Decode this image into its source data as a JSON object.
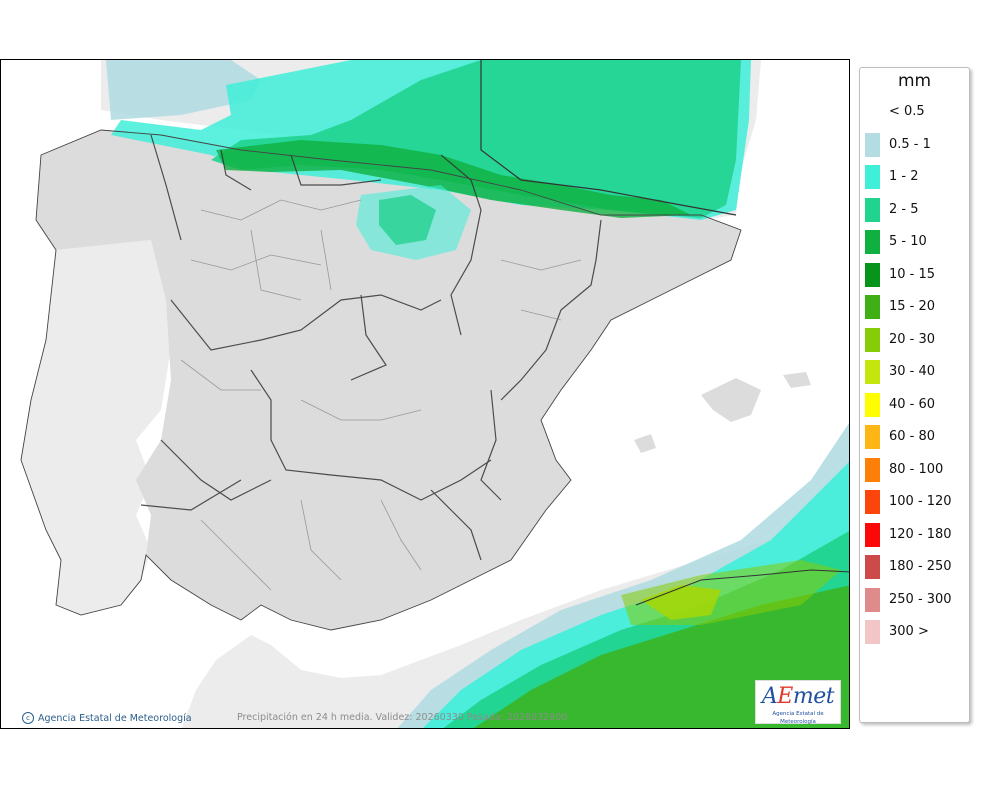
{
  "legend": {
    "unit": "mm",
    "items": [
      {
        "label": "< 0.5",
        "color": ""
      },
      {
        "label": "0.5 - 1",
        "color": "#b3dde2"
      },
      {
        "label": "1 - 2",
        "color": "#3fefd8"
      },
      {
        "label": "2 - 5",
        "color": "#20d38f"
      },
      {
        "label": "5 - 10",
        "color": "#10b040"
      },
      {
        "label": "10 - 15",
        "color": "#07941b"
      },
      {
        "label": "15 - 20",
        "color": "#3eb016"
      },
      {
        "label": "20 - 30",
        "color": "#86cc08"
      },
      {
        "label": "30 - 40",
        "color": "#c4e60e"
      },
      {
        "label": "40 - 60",
        "color": "#fefe00"
      },
      {
        "label": "60 - 80",
        "color": "#fdb614"
      },
      {
        "label": "80 - 100",
        "color": "#fd7f07"
      },
      {
        "label": "100 - 120",
        "color": "#fc450b"
      },
      {
        "label": "120 - 180",
        "color": "#fc0808"
      },
      {
        "label": "180 - 250",
        "color": "#cc4a4a"
      },
      {
        "label": "250 - 300",
        "color": "#df8b8b"
      },
      {
        "label": "300 >",
        "color": "#f2c6c6"
      }
    ]
  },
  "footer": {
    "copyright": "Agencia Estatal de Meteorología",
    "caption": "Precipitación en 24 h media. Validez: 20260330 Pasada: 2026032900"
  },
  "logo": {
    "word_start": "A",
    "word_accent": "E",
    "word_end": "met",
    "subtitle": "Agencia Estatal de Meteorología"
  },
  "map_colors": {
    "land": "#dcdcdc",
    "neighbor_land": "#ececec",
    "sea": "#ffffff",
    "lt_0_5": "#dcdcdc"
  }
}
